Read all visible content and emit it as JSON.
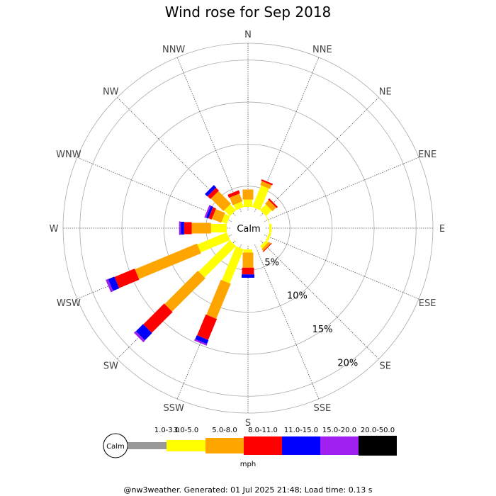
{
  "chart_data": {
    "type": "wind-rose",
    "title": "Wind rose for Sep 2018",
    "directions": [
      "N",
      "NNE",
      "NE",
      "ENE",
      "E",
      "ESE",
      "SE",
      "SSE",
      "S",
      "SSW",
      "SW",
      "WSW",
      "W",
      "WNW",
      "NW",
      "NNW"
    ],
    "radial_ticks": [
      "5%",
      "10%",
      "15%",
      "20%"
    ],
    "radial_max": 22,
    "calm_label": "Calm",
    "bins": [
      {
        "label": "1.0-3.0",
        "color": "#999999"
      },
      {
        "label": "3.0-5.0",
        "color": "#ffff00"
      },
      {
        "label": "5.0-8.0",
        "color": "#ffa500"
      },
      {
        "label": "8.0-11.0",
        "color": "#ff0000"
      },
      {
        "label": "11.0-15.0",
        "color": "#0000ff"
      },
      {
        "label": "15.0-20.0",
        "color": "#a020f0"
      },
      {
        "label": "20.0-50.0",
        "color": "#000000"
      }
    ],
    "unit": "mph",
    "series_cumulative_percent": [
      [
        2.4,
        3.4,
        4.6,
        0,
        0,
        0,
        0
      ],
      [
        2.4,
        5.3,
        5.8,
        6.0,
        0,
        0,
        0
      ],
      [
        2.4,
        3.5,
        4.1,
        4.3,
        0,
        0,
        0
      ],
      [
        2.4,
        2.6,
        0,
        0,
        0,
        0,
        0
      ],
      [
        2.4,
        2.8,
        0,
        0,
        0,
        0,
        0
      ],
      [
        2.4,
        2.8,
        0,
        0,
        0,
        0,
        0
      ],
      [
        2.4,
        2.9,
        3.2,
        3.3,
        0,
        0,
        0
      ],
      [
        2.4,
        0,
        0,
        0,
        0,
        0,
        0
      ],
      [
        2.4,
        2.9,
        4.7,
        5.5,
        5.9,
        0,
        0
      ],
      [
        2.4,
        6.9,
        11.4,
        14.1,
        14.6,
        14.8,
        0
      ],
      [
        2.4,
        7.8,
        13.4,
        16.9,
        18.1,
        18.4,
        0
      ],
      [
        2.4,
        6.3,
        14.3,
        16.9,
        17.7,
        18.0,
        0
      ],
      [
        2.4,
        4.4,
        6.7,
        7.6,
        8.0,
        8.2,
        0
      ],
      [
        2.4,
        3.2,
        4.4,
        4.8,
        5.1,
        5.3,
        0
      ],
      [
        2.4,
        3.5,
        5.6,
        6.1,
        6.5,
        0,
        0
      ],
      [
        2.4,
        3.2,
        4.2,
        4.6,
        0,
        0,
        0
      ]
    ]
  },
  "footer": "@nw3weather. Generated: 01 Jul 2025 21:48; Load time: 0.13 s"
}
